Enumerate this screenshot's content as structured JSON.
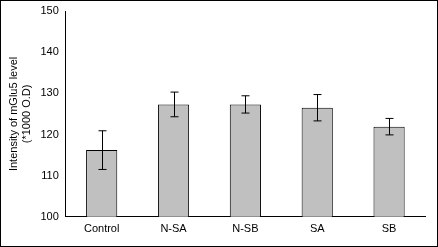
{
  "chart_data": {
    "type": "bar",
    "ylabel": [
      "Intensity of mGlu5 level",
      "(*1000 O.D)"
    ],
    "categories": [
      "Control",
      "N-SA",
      "N-SB",
      "SA",
      "SB"
    ],
    "values": [
      116.2,
      127.3,
      127.3,
      126.5,
      121.9
    ],
    "errors": [
      4.7,
      3.0,
      2.1,
      3.2,
      2.0
    ],
    "color": "#c0c0c0",
    "ylim": [
      100,
      150
    ],
    "yticks": [
      100,
      110,
      120,
      130,
      140,
      150
    ],
    "grid": false
  }
}
